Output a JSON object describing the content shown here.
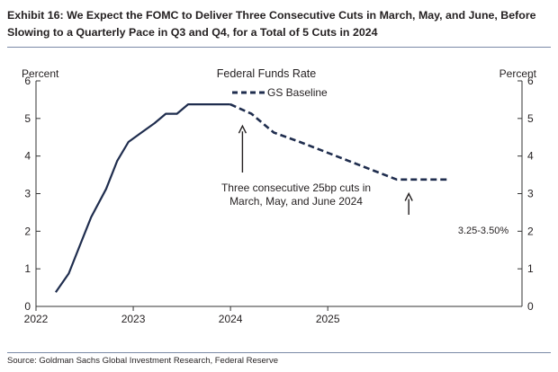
{
  "title": "Exhibit 16: We Expect the FOMC to Deliver Three Consecutive Cuts in March, May, and June, Before Slowing to a Quarterly Pace in Q3 and Q4, for a Total of 5 Cuts in 2024",
  "source": "Source: Goldman Sachs Global Investment Research, Federal Reserve",
  "chart_data": {
    "type": "line",
    "title": "Federal Funds Rate",
    "ylabel_left": "Percent",
    "ylabel_right": "Percent",
    "xlabel": "",
    "ylim": [
      0,
      6
    ],
    "xlim": [
      "2022-01-01",
      "2026-12-31"
    ],
    "y_ticks": [
      "0",
      "1",
      "2",
      "3",
      "4",
      "5",
      "6"
    ],
    "x_ticks": [
      "2022",
      "2023",
      "2024",
      "2025"
    ],
    "grid": false,
    "legend_position": "top-center",
    "series": [
      {
        "name": "",
        "style": "solid",
        "color": "#1f2d4e",
        "points": [
          {
            "x": "2022-03-16",
            "y": 0.375
          },
          {
            "x": "2022-05-04",
            "y": 0.875
          },
          {
            "x": "2022-06-15",
            "y": 1.625
          },
          {
            "x": "2022-07-27",
            "y": 2.375
          },
          {
            "x": "2022-09-21",
            "y": 3.125
          },
          {
            "x": "2022-11-02",
            "y": 3.875
          },
          {
            "x": "2022-12-14",
            "y": 4.375
          },
          {
            "x": "2023-02-01",
            "y": 4.625
          },
          {
            "x": "2023-03-22",
            "y": 4.875
          },
          {
            "x": "2023-05-03",
            "y": 5.125
          },
          {
            "x": "2023-06-14",
            "y": 5.125
          },
          {
            "x": "2023-07-26",
            "y": 5.375
          },
          {
            "x": "2023-12-31",
            "y": 5.375
          }
        ]
      },
      {
        "name": "GS Baseline",
        "style": "dashed",
        "color": "#1f2d4e",
        "points": [
          {
            "x": "2023-12-31",
            "y": 5.375
          },
          {
            "x": "2024-03-20",
            "y": 5.125
          },
          {
            "x": "2024-05-01",
            "y": 4.875
          },
          {
            "x": "2024-06-12",
            "y": 4.625
          },
          {
            "x": "2024-09-18",
            "y": 4.375
          },
          {
            "x": "2024-12-18",
            "y": 4.125
          },
          {
            "x": "2025-03-19",
            "y": 3.875
          },
          {
            "x": "2025-06-18",
            "y": 3.625
          },
          {
            "x": "2025-09-17",
            "y": 3.375
          },
          {
            "x": "2026-03-31",
            "y": 3.375
          }
        ]
      }
    ],
    "annotations": [
      {
        "text_lines": [
          "Three consecutive 25bp cuts in",
          "March, May, and June 2024"
        ],
        "arrow_to": {
          "x": "2024-02-15",
          "y": 4.8
        }
      },
      {
        "text_lines": [
          "3.25-3.50%"
        ],
        "arrow_to": {
          "x": "2025-11-01",
          "y": 3.0
        }
      }
    ]
  }
}
